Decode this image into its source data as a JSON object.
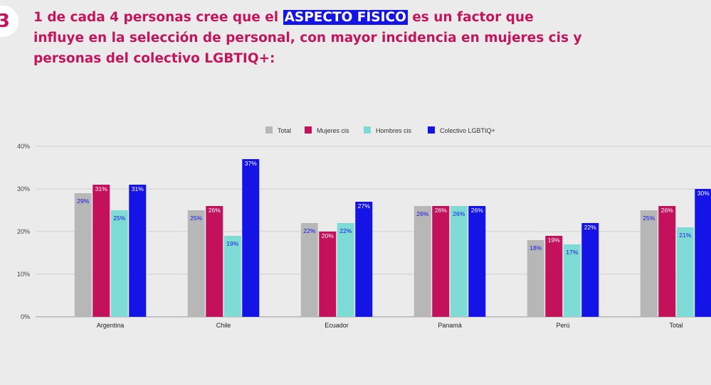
{
  "slide_number": "3",
  "headline": {
    "before": "1 de cada 4 personas cree que el ",
    "highlight": "ASPECTO FÍSICO",
    "after": " es un factor que influye en la selección de personal, con mayor incidencia en mujeres cis y personas del colectivo LGBTIQ+:"
  },
  "colors": {
    "background": "#ebebeb",
    "headline": "#c4145c",
    "highlight_bg": "#1414e6",
    "label_text": "#1414e6"
  },
  "chart_data": {
    "type": "bar",
    "title": "",
    "xlabel": "",
    "ylabel": "",
    "ylim": [
      0,
      40
    ],
    "yticks": [
      "0%",
      "10%",
      "20%",
      "30%",
      "40%"
    ],
    "grid": true,
    "legend_position": "top",
    "categories": [
      "Argentina",
      "Chile",
      "Ecuador",
      "Panamá",
      "Perú",
      "Total"
    ],
    "series": [
      {
        "name": "Total",
        "color": "#b7b7b7",
        "values": [
          29,
          25,
          22,
          26,
          18,
          25
        ]
      },
      {
        "name": "Mujeres cis",
        "color": "#c4115c",
        "values": [
          31,
          26,
          20,
          26,
          19,
          26
        ]
      },
      {
        "name": "Hombres cis",
        "color": "#7fdbd5",
        "values": [
          25,
          19,
          22,
          26,
          17,
          21
        ]
      },
      {
        "name": "Colectivo LGBTIQ+",
        "color": "#1414e6",
        "values": [
          31,
          37,
          27,
          26,
          22,
          30
        ]
      }
    ]
  }
}
